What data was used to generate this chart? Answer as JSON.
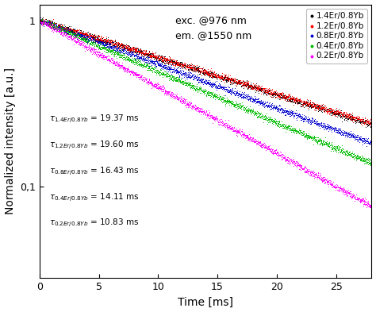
{
  "series": [
    {
      "label": "1.4Er/0.8Yb",
      "color": "#000000",
      "tau_ms": 19.37,
      "noise_seed": 101
    },
    {
      "label": "1.2Er/0.8Yb",
      "color": "#ff0000",
      "tau_ms": 19.6,
      "noise_seed": 202
    },
    {
      "label": "0.8Er/0.8Yb",
      "color": "#0000cc",
      "tau_ms": 16.43,
      "noise_seed": 303
    },
    {
      "label": "0.4Er/0.8Yb",
      "color": "#00bb00",
      "tau_ms": 14.11,
      "noise_seed": 404
    },
    {
      "label": "0.2Er/0.8Yb",
      "color": "#ff00ff",
      "tau_ms": 10.83,
      "noise_seed": 505
    }
  ],
  "xlim": [
    0,
    28
  ],
  "ylim_log": [
    0.028,
    1.25
  ],
  "xlabel": "Time [ms]",
  "ylabel": "Normalized intensity [a.u.]",
  "annotation_excitation": "exc. @976 nm",
  "annotation_emission": "em. @1550 nm",
  "n_points": 2000,
  "noise_scale": 0.022,
  "background_color": "#ffffff",
  "legend_fontsize": 7.5,
  "label_fontsize": 10,
  "tick_fontsize": 9,
  "annotation_fontsize": 9,
  "tau_annotations": [
    {
      "label": "1.4Er/0.8Yb",
      "value": "19.37"
    },
    {
      "label": "1.2Er/0.8Yb",
      "value": "19.60"
    },
    {
      "label": "0.8Er/0.8Yb",
      "value": "16.43"
    },
    {
      "label": "0.4Er/0.8Yb",
      "value": "14.11"
    },
    {
      "label": "0.2Er/0.8Yb",
      "value": "10.83"
    }
  ]
}
